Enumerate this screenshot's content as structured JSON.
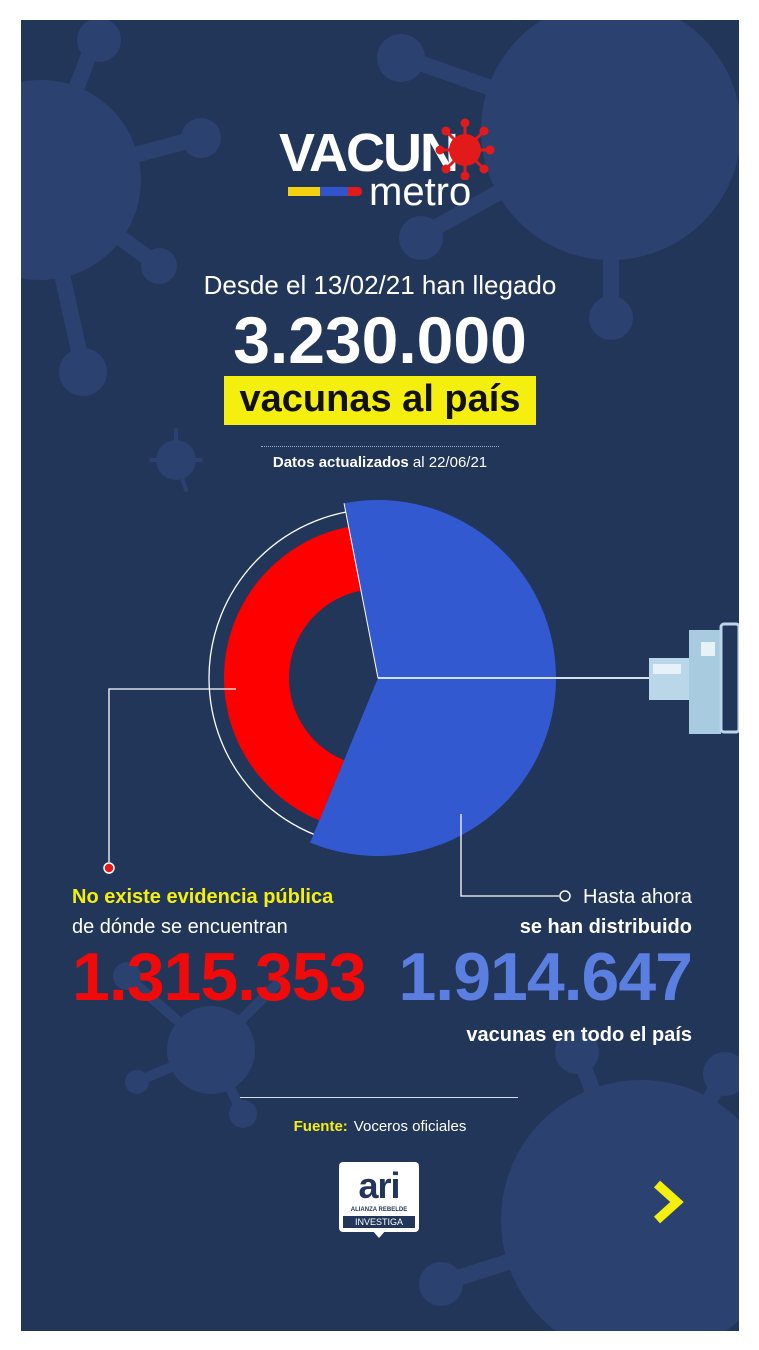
{
  "logo": {
    "word_top": "VACUN",
    "word_bottom": "metro",
    "icon": "virus-icon",
    "flag_colors": [
      "#f5d20f",
      "#3355cc",
      "#e21a1a"
    ]
  },
  "intro": "Desde el 13/02/21 han llegado",
  "total": "3.230.000",
  "highlight": "vacunas al país",
  "updated": {
    "bold": "Datos actualizados",
    "rest": " al 22/06/21"
  },
  "chart_data": {
    "type": "pie",
    "total": 3230000,
    "slices": [
      {
        "label": "No existe evidencia pública de dónde se encuentran",
        "value": 1315353,
        "color": "#ff0000"
      },
      {
        "label": "se han distribuido",
        "value": 1914647,
        "color": "#3359d1"
      }
    ]
  },
  "left": {
    "line1": "No existe evidencia pública",
    "line2": "de dónde se encuentran",
    "number": "1.315.353"
  },
  "right": {
    "line1": "Hasta ahora",
    "line2": "se han distribuido",
    "number": "1.914.647",
    "line3": "vacunas en todo el país"
  },
  "source": {
    "key": "Fuente:",
    "value": "Voceros oficiales"
  },
  "brand": {
    "main": "ari",
    "sub1": "ALIANZA REBELDE",
    "sub2": "INVESTIGA"
  },
  "colors": {
    "background": "#22365a",
    "accent_yellow": "#f5ef0f",
    "red": "#ff0000",
    "blue": "#3359d1",
    "blue_text": "#5b7fe0"
  }
}
